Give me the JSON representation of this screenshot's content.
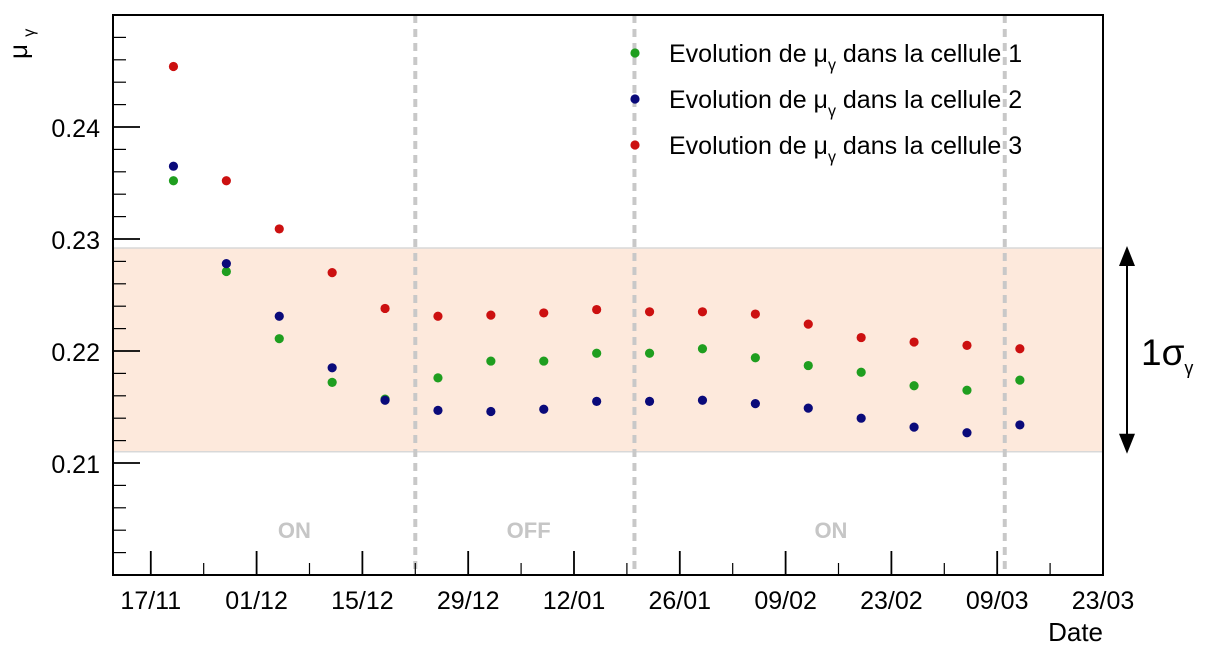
{
  "chart_data": {
    "type": "scatter",
    "ylabel": {
      "base": "μ",
      "subscript": "γ"
    },
    "xlabel": "Date",
    "ylim": [
      0.2,
      0.25
    ],
    "yticks": [
      0.21,
      0.22,
      0.23,
      0.24
    ],
    "ytick_labels": [
      "0.21",
      "0.22",
      "0.23",
      "0.24"
    ],
    "xlim": [
      "2012-11-12",
      "2013-03-23"
    ],
    "xticks": [
      "2012-11-17",
      "2012-12-01",
      "2012-12-15",
      "2012-12-29",
      "2013-01-12",
      "2013-01-26",
      "2013-02-09",
      "2013-02-23",
      "2013-03-09",
      "2013-03-23"
    ],
    "xtick_labels": [
      "17/11",
      "01/12",
      "15/12",
      "29/12",
      "12/01",
      "26/01",
      "09/02",
      "23/02",
      "09/03",
      "23/03"
    ],
    "x_dates": [
      "2012-11-20",
      "2012-11-27",
      "2012-12-04",
      "2012-12-11",
      "2012-12-18",
      "2012-12-25",
      "2013-01-01",
      "2013-01-08",
      "2013-01-15",
      "2013-01-22",
      "2013-01-29",
      "2013-02-05",
      "2013-02-12",
      "2013-02-19",
      "2013-02-26",
      "2013-03-05",
      "2013-03-12"
    ],
    "series": [
      {
        "name_parts": {
          "prefix": "Evolution de ",
          "symbol": "μ",
          "subscript": "γ",
          "suffix": " dans la cellule 1"
        },
        "color": "#1f9e1f",
        "values": [
          0.2352,
          0.2271,
          0.2211,
          0.2172,
          0.2157,
          0.2176,
          0.2191,
          0.2191,
          0.2198,
          0.2198,
          0.2202,
          0.2194,
          0.2187,
          0.2181,
          0.2169,
          0.2165,
          0.2174
        ]
      },
      {
        "name_parts": {
          "prefix": "Evolution de ",
          "symbol": "μ",
          "subscript": "γ",
          "suffix": " dans la cellule 2"
        },
        "color": "#0a0a7a",
        "values": [
          0.2365,
          0.2278,
          0.2231,
          0.2185,
          0.2156,
          0.2147,
          0.2146,
          0.2148,
          0.2155,
          0.2155,
          0.2156,
          0.2153,
          0.2149,
          0.214,
          0.2132,
          0.2127,
          0.2134
        ]
      },
      {
        "name_parts": {
          "prefix": "Evolution de ",
          "symbol": "μ",
          "subscript": "γ",
          "suffix": " dans la cellule 3"
        },
        "color": "#cc1010",
        "values": [
          0.2454,
          0.2352,
          0.2309,
          0.227,
          0.2238,
          0.2231,
          0.2232,
          0.2234,
          0.2237,
          0.2235,
          0.2235,
          0.2233,
          0.2224,
          0.2212,
          0.2208,
          0.2205,
          0.2202
        ]
      }
    ],
    "band": {
      "ymin": 0.211,
      "ymax": 0.2292,
      "color": "#fde9dc",
      "label_number": "1",
      "label_symbol": "σ",
      "label_subscript": "γ"
    },
    "dividers": [
      "2012-12-22",
      "2013-01-20",
      "2013-03-10"
    ],
    "region_labels": [
      {
        "text": "ON",
        "x": "2012-12-06"
      },
      {
        "text": "OFF",
        "x": "2013-01-06"
      },
      {
        "text": "ON",
        "x": "2013-02-15"
      }
    ],
    "legend_position": "top-right",
    "grid": false
  }
}
